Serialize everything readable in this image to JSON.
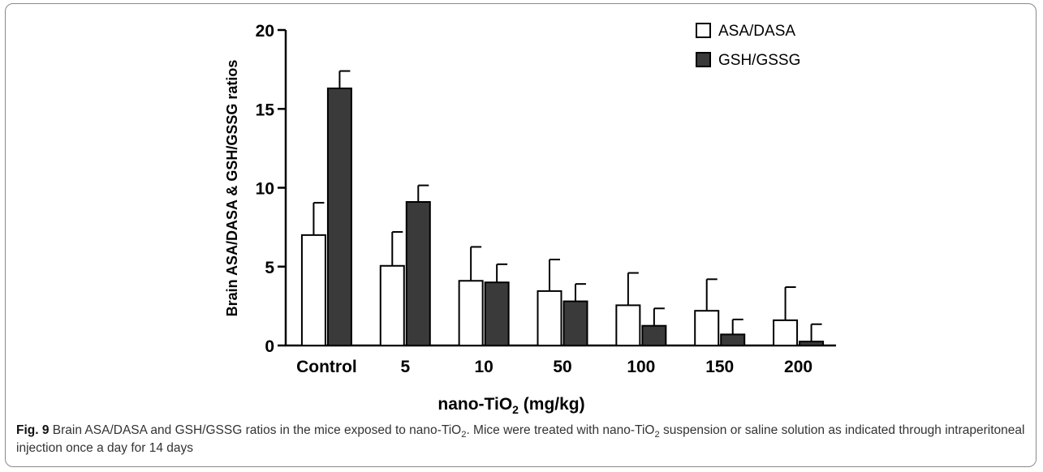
{
  "chart_data": {
    "type": "bar",
    "categories": [
      "Control",
      "5",
      "10",
      "50",
      "100",
      "150",
      "200"
    ],
    "series": [
      {
        "name": "ASA/DASA",
        "values": [
          7.0,
          5.05,
          4.1,
          3.45,
          2.55,
          2.2,
          1.6
        ],
        "errors": [
          2.05,
          2.15,
          2.15,
          2.0,
          2.05,
          2.0,
          2.1
        ],
        "color": "#ffffff"
      },
      {
        "name": "GSH/GSSG",
        "values": [
          16.3,
          9.1,
          4.0,
          2.8,
          1.25,
          0.7,
          0.25
        ],
        "errors": [
          1.1,
          1.05,
          1.15,
          1.1,
          1.1,
          0.95,
          1.1
        ],
        "color": "#3a3a3a"
      }
    ],
    "ylim": [
      0,
      20
    ],
    "yticks": [
      "0",
      "5",
      "10",
      "15",
      "20"
    ],
    "ylabel": "Brain ASA/DASA & GSH/GSSG ratios",
    "xlabel_main": "nano-TiO",
    "xlabel_sub": "2",
    "xlabel_tail": " (mg/kg)",
    "legend_position": "top-right",
    "grid": false
  },
  "caption": {
    "label": "Fig. 9",
    "t1": " Brain ASA/DASA and GSH/GSSG ratios in the mice exposed to nano-TiO",
    "sub1": "2",
    "t2": ". Mice were treated with nano-TiO",
    "sub2": "2",
    "t3": " suspension or saline solution as indicated through intraperitoneal injection once a day for 14 days"
  }
}
